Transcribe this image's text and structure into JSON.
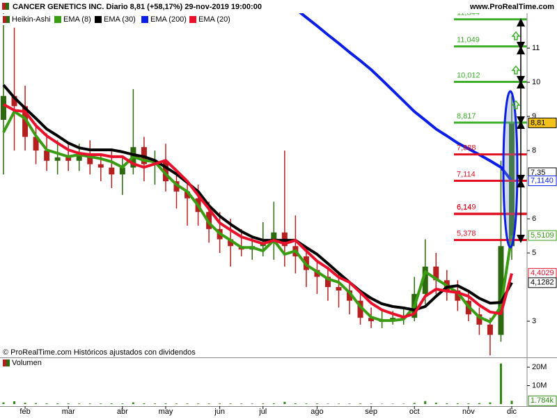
{
  "header": {
    "title": "CANCER GENETICS INC. Diario 8,81 (+58,17%) 29-nov-2019 19:00:00",
    "site": "www.ProRealTime.com"
  },
  "chart_data": [
    {
      "type": "candlestick",
      "categories": [
        null,
        null,
        "feb",
        null,
        null,
        null,
        "mar",
        null,
        null,
        null,
        null,
        "abr",
        null,
        null,
        null,
        "may",
        null,
        null,
        null,
        null,
        "jun",
        null,
        null,
        null,
        "jul",
        null,
        null,
        null,
        null,
        "ago",
        null,
        null,
        null,
        null,
        "sep",
        null,
        null,
        null,
        "oct",
        null,
        null,
        null,
        null,
        "nov",
        null,
        null,
        null,
        "dic"
      ],
      "candles": {
        "name": "Heikin-Ashi",
        "up_color": "#2d6a0f",
        "down_color": "#b51f1f",
        "open": [
          8.9,
          9.6,
          9.3,
          8.4,
          8.0,
          7.7,
          7.8,
          7.7,
          7.9,
          7.6,
          7.5,
          7.3,
          7.5,
          8.1,
          7.6,
          7.7,
          7.1,
          6.8,
          6.6,
          6.2,
          5.7,
          5.4,
          5.2,
          5.1,
          5.2,
          5.3,
          5.6,
          5.2,
          4.9,
          4.5,
          4.3,
          4.0,
          3.9,
          3.6,
          3.1,
          3.0,
          3.0,
          3.1,
          3.1,
          3.8,
          4.6,
          4.2,
          3.9,
          3.6,
          3.2,
          2.9,
          2.6,
          5.2
        ],
        "high": [
          12.2,
          11.6,
          9.9,
          8.8,
          8.5,
          8.3,
          8.2,
          8.2,
          8.3,
          7.9,
          8.0,
          7.8,
          9.8,
          8.4,
          8.0,
          8.2,
          7.4,
          7.1,
          7.0,
          6.5,
          6.2,
          6.0,
          5.7,
          5.5,
          5.9,
          6.5,
          8.0,
          6.1,
          5.2,
          4.8,
          4.6,
          4.4,
          4.1,
          3.9,
          3.4,
          3.3,
          3.3,
          3.4,
          4.3,
          5.4,
          5.0,
          4.5,
          4.2,
          3.9,
          3.4,
          3.1,
          7.7,
          9.6
        ],
        "low": [
          7.3,
          8.0,
          8.0,
          7.6,
          7.4,
          7.3,
          7.4,
          7.4,
          7.3,
          7.1,
          6.9,
          6.7,
          7.3,
          7.1,
          7.0,
          6.8,
          6.3,
          5.8,
          5.8,
          5.3,
          5.0,
          4.6,
          4.9,
          4.8,
          4.9,
          4.8,
          4.6,
          4.4,
          4.0,
          3.8,
          3.6,
          3.4,
          3.2,
          2.9,
          2.8,
          2.8,
          2.9,
          2.9,
          3.0,
          3.5,
          3.8,
          3.6,
          3.3,
          3.0,
          2.6,
          2.0,
          2.4,
          4.8
        ],
        "close": [
          9.6,
          9.3,
          8.4,
          8.0,
          7.7,
          7.8,
          7.7,
          7.9,
          7.6,
          7.5,
          7.3,
          7.5,
          8.1,
          7.6,
          7.7,
          7.1,
          6.8,
          6.6,
          6.2,
          5.7,
          5.4,
          5.2,
          5.1,
          5.2,
          5.3,
          5.6,
          5.2,
          4.9,
          4.5,
          4.3,
          4.0,
          3.9,
          3.6,
          3.1,
          3.0,
          3.0,
          3.1,
          3.1,
          3.8,
          4.6,
          4.2,
          3.9,
          3.6,
          3.2,
          2.9,
          2.6,
          5.2,
          8.81
        ]
      },
      "series": [
        {
          "name": "EMA (8)",
          "color": "#3a9c12",
          "values": [
            8.53,
            9.14,
            8.94,
            8.43,
            8.02,
            7.92,
            7.82,
            7.88,
            7.82,
            7.76,
            7.67,
            7.51,
            7.82,
            7.71,
            7.67,
            7.31,
            7.0,
            6.8,
            6.39,
            5.88,
            5.57,
            5.37,
            5.16,
            5.16,
            5.06,
            5.37,
            4.96,
            5.06,
            4.65,
            4.45,
            4.24,
            4.14,
            3.84,
            3.43,
            3.12,
            3.02,
            3.02,
            3.06,
            3.43,
            4.45,
            4.24,
            4.04,
            3.84,
            3.43,
            3.12,
            2.98,
            3.43,
            5.51
          ]
        },
        {
          "name": "EMA (30)",
          "color": "#000000",
          "values": [
            9.92,
            9.55,
            9.24,
            8.94,
            8.63,
            8.43,
            8.22,
            8.08,
            8.02,
            8.02,
            8.02,
            7.96,
            7.88,
            7.82,
            7.71,
            7.51,
            7.31,
            7.06,
            6.8,
            6.39,
            6.08,
            5.84,
            5.63,
            5.47,
            5.37,
            5.37,
            5.37,
            5.37,
            5.16,
            4.96,
            4.69,
            4.41,
            4.14,
            3.88,
            3.67,
            3.51,
            3.43,
            3.39,
            3.33,
            3.43,
            3.73,
            4.0,
            4.04,
            3.88,
            3.67,
            3.53,
            3.55,
            4.13
          ]
        },
        {
          "name": "EMA (200)",
          "color": "#0a1ee6",
          "values": [
            null,
            null,
            null,
            null,
            null,
            null,
            null,
            null,
            null,
            null,
            null,
            null,
            null,
            null,
            null,
            null,
            null,
            null,
            null,
            null,
            null,
            null,
            null,
            null,
            null,
            null,
            null,
            12.15,
            11.9,
            11.65,
            11.39,
            11.14,
            10.88,
            10.63,
            10.37,
            10.07,
            9.76,
            9.45,
            9.14,
            8.89,
            8.63,
            8.43,
            8.22,
            8.05,
            7.88,
            7.7,
            7.51,
            7.11
          ]
        },
        {
          "name": "EMA (20)",
          "color": "#e8102a",
          "values": [
            9.35,
            9.18,
            9.14,
            8.73,
            8.43,
            8.22,
            8.02,
            7.92,
            7.88,
            7.88,
            7.82,
            7.82,
            7.61,
            7.51,
            7.61,
            7.71,
            7.41,
            7.1,
            6.69,
            6.29,
            5.88,
            5.67,
            5.47,
            5.37,
            5.27,
            5.37,
            5.27,
            5.37,
            5.06,
            4.76,
            4.55,
            4.29,
            4.14,
            3.84,
            3.53,
            3.33,
            3.22,
            3.12,
            3.22,
            3.73,
            3.94,
            3.88,
            3.84,
            3.73,
            3.47,
            3.27,
            3.22,
            4.4
          ]
        }
      ],
      "ylim": [
        1.94,
        12.41
      ],
      "yticks": [
        3,
        5,
        6,
        8,
        9,
        10,
        11
      ],
      "levels": [
        {
          "value": 11.844,
          "label": "11,844",
          "color": "#3cae2a"
        },
        {
          "value": 11.049,
          "label": "11,049",
          "color": "#3cae2a"
        },
        {
          "value": 10.012,
          "label": "10,012",
          "color": "#3cae2a"
        },
        {
          "value": 8.817,
          "label": "8,817",
          "color": "#3cae2a"
        },
        {
          "value": 7.888,
          "label": "7,888",
          "color": "#e01020"
        },
        {
          "value": 7.114,
          "label": "7,114",
          "color": "#e01020"
        },
        {
          "value": 6.149,
          "label": "6,149",
          "color": "#e01020"
        },
        {
          "value": 6.14,
          "label": "6,14",
          "color": "#e01020"
        },
        {
          "value": 5.378,
          "label": "5,378",
          "color": "#e01020"
        }
      ],
      "price_labels": [
        {
          "value": 8.81,
          "label": "8,81",
          "color": "#000000",
          "background": "#f2c21b"
        },
        {
          "value": 7.35,
          "label": "7,35",
          "color": "#000000"
        },
        {
          "value": 7.114,
          "label": "7,1140",
          "color": "#0a1ee6"
        },
        {
          "value": 5.5109,
          "label": "5,5109",
          "color": "#3a9c12"
        },
        {
          "value": 4.4029,
          "label": "4,4029",
          "color": "#e8102a"
        },
        {
          "value": 4.1282,
          "label": "4,1282",
          "color": "#000000"
        }
      ],
      "note": "© ProRealTime.com Históricos ajustados con dividendos"
    },
    {
      "type": "bar",
      "title": "Volumen",
      "color": "#2d8a12",
      "values": [
        900000,
        1500000,
        700000,
        500000,
        400000,
        400000,
        350000,
        300000,
        300000,
        300000,
        350000,
        300000,
        900000,
        400000,
        300000,
        350000,
        300000,
        300000,
        300000,
        300000,
        300000,
        300000,
        250000,
        250000,
        300000,
        400000,
        1200000,
        400000,
        300000,
        300000,
        250000,
        250000,
        250000,
        300000,
        250000,
        200000,
        200000,
        200000,
        600000,
        1600000,
        700000,
        400000,
        400000,
        350000,
        500000,
        900000,
        22000000,
        1784000
      ],
      "ylim": [
        0,
        23800000
      ],
      "yticks": [
        {
          "value": 10000000,
          "label": "10M"
        },
        {
          "value": 20000000,
          "label": "20M"
        }
      ],
      "last_label": {
        "value": 1784000,
        "label": "1.784k"
      }
    }
  ]
}
